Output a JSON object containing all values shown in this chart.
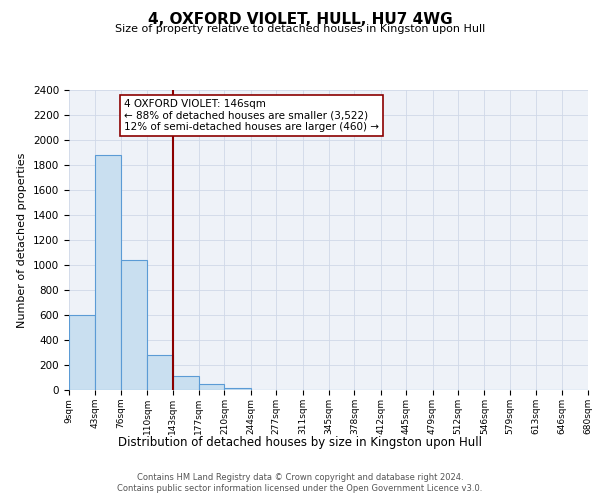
{
  "title": "4, OXFORD VIOLET, HULL, HU7 4WG",
  "subtitle": "Size of property relative to detached houses in Kingston upon Hull",
  "xlabel": "Distribution of detached houses by size in Kingston upon Hull",
  "ylabel": "Number of detached properties",
  "bar_values": [
    600,
    1880,
    1040,
    280,
    110,
    45,
    20,
    0,
    0,
    0,
    0,
    0,
    0,
    0,
    0,
    0,
    0,
    0,
    0,
    0
  ],
  "bin_edges": [
    9,
    43,
    76,
    110,
    143,
    177,
    210,
    244,
    277,
    311,
    345,
    378,
    412,
    445,
    479,
    512,
    546,
    579,
    613,
    646,
    680
  ],
  "bin_labels": [
    "9sqm",
    "43sqm",
    "76sqm",
    "110sqm",
    "143sqm",
    "177sqm",
    "210sqm",
    "244sqm",
    "277sqm",
    "311sqm",
    "345sqm",
    "378sqm",
    "412sqm",
    "445sqm",
    "479sqm",
    "512sqm",
    "546sqm",
    "579sqm",
    "613sqm",
    "646sqm",
    "680sqm"
  ],
  "property_line_x": 143,
  "property_size_sqm": 146,
  "pct_smaller": 88,
  "count_smaller": 3522,
  "pct_larger_semi": 12,
  "count_larger_semi": 460,
  "bar_face_color": "#c9dff0",
  "bar_edge_color": "#5b9bd5",
  "vline_color": "#8b0000",
  "annotation_box_edge_color": "#8b0000",
  "grid_color": "#d0d8e8",
  "background_color": "#eef2f8",
  "ylim": [
    0,
    2400
  ],
  "yticks": [
    0,
    200,
    400,
    600,
    800,
    1000,
    1200,
    1400,
    1600,
    1800,
    2000,
    2200,
    2400
  ],
  "footer_line1": "Contains HM Land Registry data © Crown copyright and database right 2024.",
  "footer_line2": "Contains public sector information licensed under the Open Government Licence v3.0."
}
